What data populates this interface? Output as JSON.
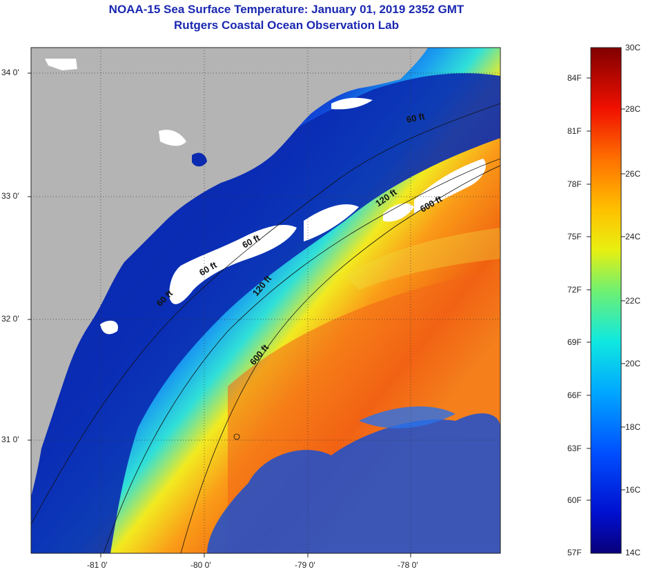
{
  "header": {
    "title_line1": "NOAA-15 Sea Surface Temperature:  January 01, 2019 2352 GMT",
    "title_line2": "Rutgers Coastal Ocean Observation Lab"
  },
  "map": {
    "lat_labels": [
      "34 0'",
      "33 0'",
      "32 0'",
      "31 0'"
    ],
    "lon_labels": [
      "-81 0'",
      "-80 0'",
      "-79 0'",
      "-78 0'"
    ],
    "contour_labels": [
      "60 ft",
      "60 ft",
      "120 ft",
      "600 ft",
      "600 ft",
      "60 ft",
      "120 ft",
      "60 ft"
    ],
    "colors": {
      "land": "#b4b4b4",
      "cloud": "#ffffff",
      "shelf": "#0a2ab0"
    }
  },
  "colorbar": {
    "celsius_labels": [
      "30C",
      "28C",
      "26C",
      "24C",
      "22C",
      "20C",
      "18C",
      "16C",
      "14C"
    ],
    "fahrenheit_labels": [
      "84F",
      "81F",
      "78F",
      "75F",
      "72F",
      "69F",
      "66F",
      "63F",
      "60F",
      "57F"
    ],
    "range_c": [
      14,
      30
    ],
    "range_f": [
      57,
      86
    ]
  }
}
